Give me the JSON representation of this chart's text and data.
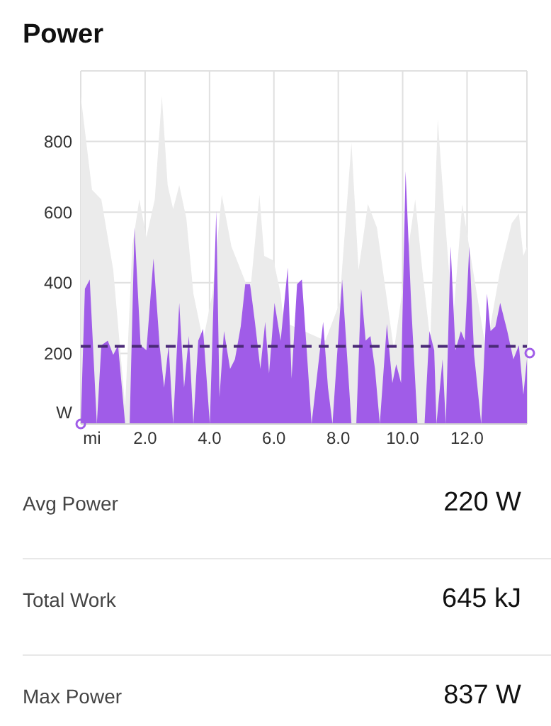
{
  "chart_data": {
    "type": "area",
    "title": "Power",
    "xlim": [
      0,
      13.86
    ],
    "ylim": [
      0,
      1000
    ],
    "xticks": [
      {
        "value": 0,
        "label": "mi"
      },
      {
        "value": 2,
        "label": "2.0"
      },
      {
        "value": 4,
        "label": "4.0"
      },
      {
        "value": 6,
        "label": "6.0"
      },
      {
        "value": 8,
        "label": "8.0"
      },
      {
        "value": 10,
        "label": "10.0"
      },
      {
        "value": 12,
        "label": "12.0"
      }
    ],
    "yticks": [
      {
        "value": 0,
        "label": "W"
      },
      200,
      400,
      600,
      800
    ],
    "grid": true,
    "series": [
      {
        "color": "#ebebeb",
        "x": [
          0,
          0.35,
          0.64,
          1.01,
          1.38,
          1.6,
          1.82,
          2.04,
          2.3,
          2.52,
          2.7,
          2.87,
          3.06,
          3.28,
          3.5,
          3.8,
          4.09,
          4.38,
          4.68,
          5.26,
          5.55,
          5.7,
          5.99,
          6.21,
          6.3,
          7.6,
          8.04,
          8.41,
          8.63,
          8.92,
          9.2,
          9.73,
          10.39,
          10.61,
          10.86,
          11.09,
          11.27,
          11.56,
          11.85,
          12.59,
          13.03,
          13.39,
          13.61,
          13.75,
          13.86
        ],
        "values": [
          929,
          663,
          636,
          436,
          49,
          503,
          636,
          529,
          636,
          929,
          676,
          609,
          676,
          583,
          369,
          236,
          369,
          649,
          503,
          369,
          649,
          476,
          463,
          369,
          289,
          236,
          343,
          796,
          436,
          623,
          556,
          209,
          636,
          436,
          236,
          863,
          636,
          289,
          623,
          209,
          436,
          569,
          596,
          476,
          503
        ]
      },
      {
        "color": "#a05ce8",
        "x": [
          0,
          0.13,
          0.28,
          0.5,
          0.64,
          0.84,
          1.01,
          1.16,
          1.38,
          1.52,
          1.67,
          1.86,
          2.04,
          2.26,
          2.45,
          2.59,
          2.73,
          2.87,
          3.06,
          3.21,
          3.36,
          3.5,
          3.65,
          3.8,
          4.01,
          4.21,
          4.31,
          4.45,
          4.64,
          4.79,
          4.97,
          5.11,
          5.26,
          5.41,
          5.58,
          5.73,
          5.85,
          6.02,
          6.21,
          6.43,
          6.55,
          6.72,
          6.87,
          7.02,
          7.17,
          7.53,
          7.68,
          7.82,
          8.12,
          8.41,
          8.56,
          8.71,
          8.85,
          9.0,
          9.14,
          9.29,
          9.51,
          9.68,
          9.8,
          9.95,
          10.09,
          10.27,
          10.46,
          10.68,
          10.83,
          10.98,
          11.05,
          11.24,
          11.34,
          11.49,
          11.64,
          11.81,
          11.93,
          12.07,
          12.22,
          12.44,
          12.62,
          12.73,
          12.88,
          13.03,
          13.25,
          13.44,
          13.61,
          13.75,
          13.86
        ],
        "values": [
          0,
          383,
          409,
          0,
          223,
          236,
          196,
          223,
          0,
          0,
          556,
          223,
          209,
          469,
          223,
          103,
          223,
          0,
          343,
          103,
          249,
          0,
          236,
          269,
          0,
          603,
          76,
          263,
          156,
          183,
          276,
          396,
          396,
          289,
          156,
          289,
          143,
          343,
          236,
          443,
          129,
          396,
          409,
          209,
          0,
          289,
          103,
          0,
          409,
          0,
          0,
          383,
          236,
          249,
          156,
          0,
          283,
          116,
          169,
          116,
          716,
          329,
          0,
          0,
          263,
          209,
          0,
          183,
          0,
          503,
          209,
          263,
          236,
          503,
          196,
          0,
          369,
          263,
          276,
          343,
          263,
          183,
          223,
          83,
          183
        ]
      }
    ],
    "ref_lines": [
      {
        "axis": "y",
        "value": 220,
        "color": "#4b2a78",
        "line_style": "dashed"
      }
    ],
    "annotations": [
      "Avg Power",
      "220 W",
      "Total Work",
      "645 kJ",
      "Max Power",
      "837 W"
    ]
  }
}
